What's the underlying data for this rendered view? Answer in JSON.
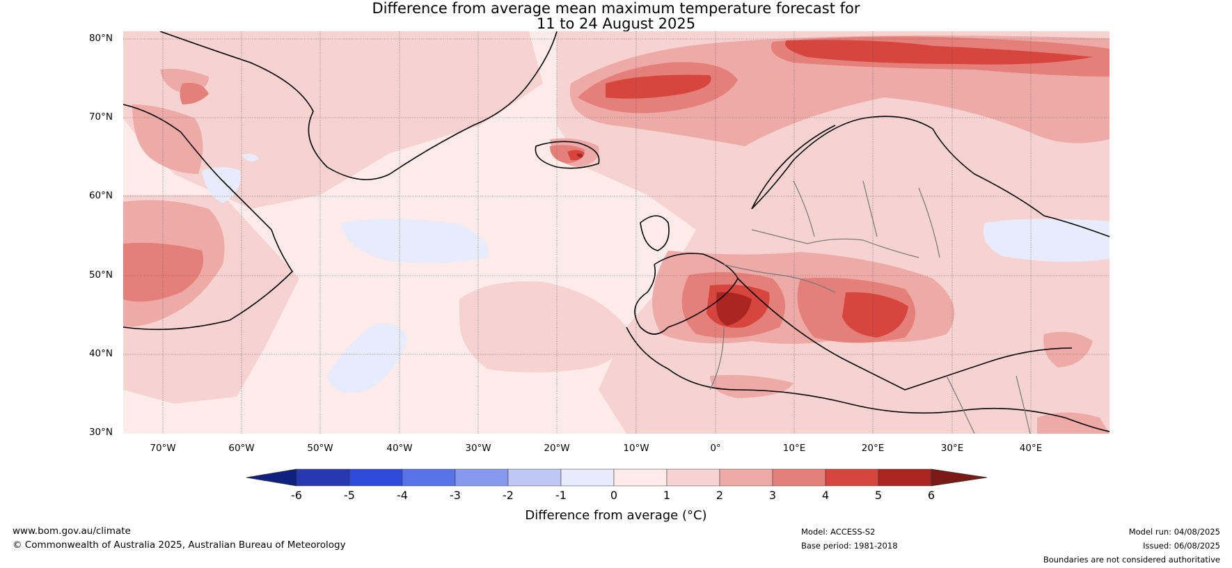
{
  "title": {
    "line1": "Difference from average mean maximum temperature forecast for",
    "line2": "11 to 24 August 2025"
  },
  "map": {
    "lat_labels": [
      "80°N",
      "70°N",
      "60°N",
      "50°N",
      "40°N",
      "30°N"
    ],
    "lon_labels": [
      "70°W",
      "60°W",
      "50°W",
      "40°W",
      "30°W",
      "20°W",
      "10°W",
      "0°",
      "10°E",
      "20°E",
      "30°E",
      "40°E"
    ],
    "lon_range": [
      -75,
      50
    ],
    "lat_range": [
      30,
      81
    ]
  },
  "colorbar": {
    "ticks": [
      "-6",
      "-5",
      "-4",
      "-3",
      "-2",
      "-1",
      "0",
      "1",
      "2",
      "3",
      "4",
      "5",
      "6"
    ],
    "colors": [
      "#0f2180",
      "#2738b0",
      "#2f4bdc",
      "#5a72e8",
      "#8698ee",
      "#bfc8f4",
      "#e7ebfb",
      "#fcebe8",
      "#f6d2d0",
      "#eeaaa6",
      "#e57f79",
      "#d7453f",
      "#aa2620",
      "#7a1a16"
    ],
    "label": "Difference from average (°C)"
  },
  "footer": {
    "website": "www.bom.gov.au/climate",
    "copyright": "© Commonwealth of Australia 2025, Australian Bureau of Meteorology",
    "model": "Model: ACCESS-S2",
    "base_period": "Base period: 1981-2018",
    "model_run": "Model run: 04/08/2025",
    "issued": "Issued: 06/08/2025",
    "disclaimer": "Boundaries are not considered authoritative"
  }
}
